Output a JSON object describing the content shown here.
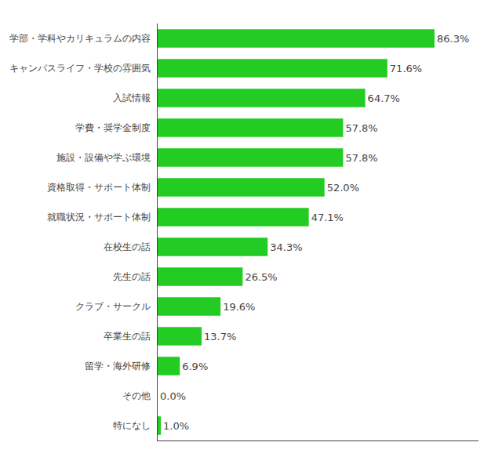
{
  "chart_data": {
    "type": "bar",
    "orientation": "horizontal",
    "categories": [
      "学部・学科やカリキュラムの内容",
      "キャンパスライフ・学校の雰囲気",
      "入試情報",
      "学費・奨学金制度",
      "施設・設備や学ぶ環境",
      "資格取得・サポート体制",
      "就職状況・サポート体制",
      "在校生の話",
      "先生の話",
      "クラブ・サークル",
      "卒業生の話",
      "留学・海外研修",
      "その他",
      "特になし"
    ],
    "values": [
      86.3,
      71.6,
      64.7,
      57.8,
      57.8,
      52.0,
      47.1,
      34.3,
      26.5,
      19.6,
      13.7,
      6.9,
      0.0,
      1.0
    ],
    "value_labels": [
      "86.3%",
      "71.6%",
      "64.7%",
      "57.8%",
      "57.8%",
      "52.0%",
      "47.1%",
      "34.3%",
      "26.5%",
      "19.6%",
      "13.7%",
      "6.9%",
      "0.0%",
      "1.0%"
    ],
    "color": "#22cc22",
    "xlim": [
      0,
      100
    ],
    "tick_labels": "y",
    "data_labels": true,
    "grid": false
  }
}
